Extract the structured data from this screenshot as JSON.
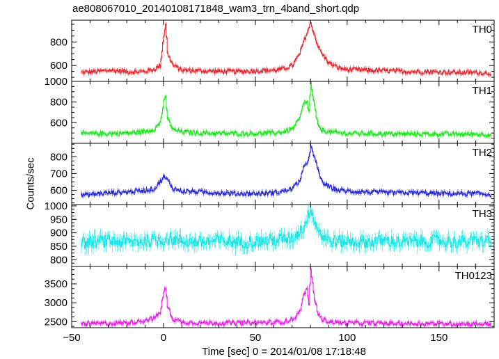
{
  "chart_data": {
    "type": "line",
    "title": "ae808067010_20140108171848_wam3_trn_4band_short.qdp",
    "xlabel": "Time [sec] 0 = 2014/01/08 17:18:48",
    "ylabel": "Counts/sec",
    "xlim": [
      -50,
      180
    ],
    "xticks": [
      -50,
      0,
      50,
      100,
      150
    ],
    "grid": false,
    "panels": [
      {
        "name": "TH0",
        "color": "#e8232b",
        "ylim": [
          465,
          985
        ],
        "yticks": [
          600,
          800
        ],
        "x": [
          -45,
          -40,
          -35,
          -30,
          -25,
          -20,
          -15,
          -10,
          -5,
          -2,
          0,
          1,
          2,
          5,
          10,
          20,
          30,
          40,
          50,
          60,
          65,
          70,
          74,
          76,
          78,
          80,
          82,
          84,
          86,
          90,
          95,
          100,
          110,
          120,
          130,
          140,
          150,
          160,
          170,
          178
        ],
        "values": [
          540,
          545,
          550,
          560,
          555,
          548,
          545,
          550,
          570,
          600,
          860,
          960,
          700,
          600,
          560,
          555,
          550,
          548,
          555,
          560,
          570,
          600,
          700,
          800,
          880,
          960,
          860,
          760,
          700,
          620,
          580,
          565,
          560,
          555,
          550,
          548,
          545,
          540,
          540,
          535
        ]
      },
      {
        "name": "TH1",
        "color": "#19e619",
        "ylim": [
          400,
          1000
        ],
        "yticks": [
          600,
          800,
          1000
        ],
        "x": [
          -45,
          -40,
          -30,
          -20,
          -15,
          -10,
          -5,
          -2,
          0,
          1,
          2,
          5,
          10,
          20,
          30,
          40,
          50,
          60,
          65,
          70,
          74,
          76,
          78,
          79,
          80,
          81,
          82,
          84,
          86,
          90,
          95,
          100,
          110,
          120,
          130,
          140,
          150,
          160,
          170,
          178
        ],
        "values": [
          490,
          492,
          495,
          498,
          505,
          515,
          540,
          600,
          800,
          840,
          640,
          530,
          510,
          500,
          495,
          495,
          495,
          500,
          510,
          540,
          640,
          780,
          800,
          700,
          1000,
          850,
          760,
          560,
          530,
          510,
          500,
          495,
          495,
          492,
          490,
          490,
          490,
          488,
          488,
          485
        ]
      },
      {
        "name": "TH2",
        "color": "#2727d0",
        "ylim": [
          515,
          880
        ],
        "yticks": [
          600,
          700,
          800
        ],
        "x": [
          -45,
          -40,
          -30,
          -20,
          -10,
          -5,
          0,
          2,
          5,
          10,
          20,
          30,
          40,
          50,
          60,
          65,
          70,
          74,
          76,
          78,
          80,
          82,
          84,
          86,
          90,
          95,
          100,
          110,
          120,
          130,
          140,
          150,
          160,
          170,
          178
        ],
        "values": [
          570,
          575,
          585,
          590,
          600,
          610,
          680,
          660,
          610,
          595,
          590,
          585,
          580,
          580,
          585,
          595,
          610,
          660,
          730,
          760,
          860,
          790,
          720,
          650,
          620,
          600,
          595,
          590,
          585,
          585,
          585,
          580,
          580,
          580,
          575
        ]
      },
      {
        "name": "TH3",
        "color": "#19e6e6",
        "ylim": [
          775,
          1005
        ],
        "yticks": [
          800,
          850,
          900,
          950,
          1000
        ],
        "x": [
          -45,
          -40,
          -30,
          -20,
          -10,
          0,
          2,
          10,
          20,
          30,
          40,
          50,
          60,
          70,
          76,
          78,
          80,
          82,
          86,
          90,
          100,
          110,
          120,
          130,
          140,
          150,
          160,
          170,
          178
        ],
        "values": [
          860,
          865,
          870,
          865,
          870,
          875,
          880,
          870,
          865,
          870,
          865,
          868,
          872,
          880,
          920,
          950,
          1000,
          940,
          890,
          870,
          868,
          866,
          870,
          865,
          868,
          870,
          865,
          868,
          870
        ]
      },
      {
        "name": "TH0123",
        "color": "#e61ee6",
        "ylim": [
          2340,
          3960
        ],
        "yticks": [
          2500,
          3000,
          3500
        ],
        "x": [
          -45,
          -40,
          -30,
          -20,
          -15,
          -10,
          -5,
          -2,
          0,
          1,
          2,
          5,
          10,
          20,
          30,
          40,
          50,
          60,
          65,
          70,
          74,
          76,
          78,
          79,
          80,
          81,
          82,
          84,
          86,
          90,
          95,
          100,
          110,
          120,
          130,
          140,
          150,
          160,
          170,
          178
        ],
        "values": [
          2440,
          2445,
          2455,
          2470,
          2500,
          2540,
          2600,
          2750,
          3300,
          3380,
          2900,
          2560,
          2490,
          2470,
          2465,
          2465,
          2470,
          2480,
          2500,
          2560,
          2750,
          3200,
          3350,
          3000,
          3850,
          3500,
          3100,
          2700,
          2560,
          2500,
          2475,
          2465,
          2460,
          2455,
          2450,
          2450,
          2448,
          2445,
          2440,
          2438
        ]
      }
    ]
  }
}
